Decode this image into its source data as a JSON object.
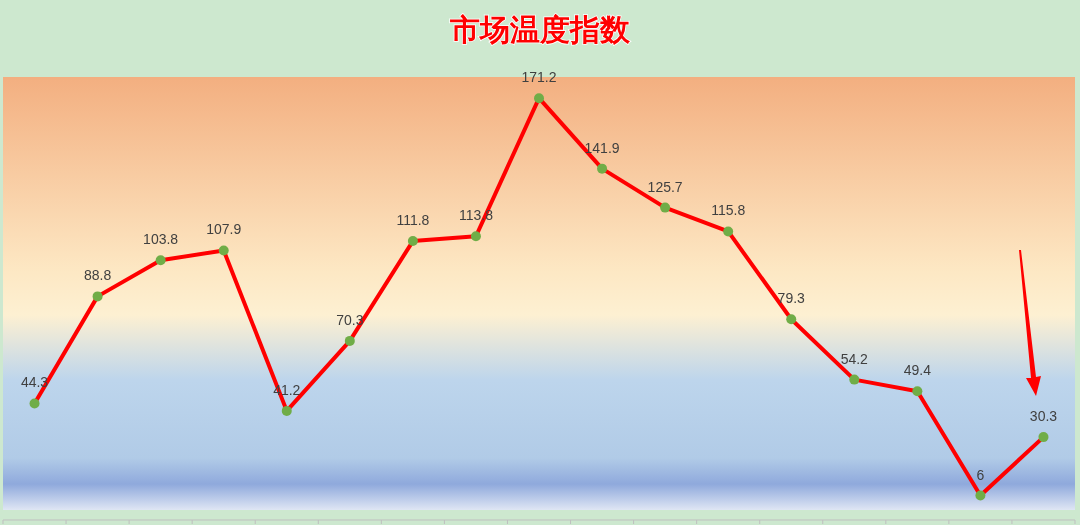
{
  "chart_data": {
    "type": "line",
    "title": "市场温度指数",
    "categories": [
      null,
      null,
      null,
      null,
      null,
      null,
      null,
      null,
      null,
      null,
      null,
      null,
      null,
      null,
      null,
      null,
      null
    ],
    "series": [
      {
        "color": "#ff0000",
        "values": [
          44.3,
          88.8,
          103.8,
          107.9,
          41.2,
          70.3,
          111.8,
          113.8,
          171.2,
          141.9,
          125.7,
          115.8,
          79.3,
          54.2,
          49.4,
          6,
          30.3
        ]
      }
    ],
    "marker": "circle",
    "line_style": "solid",
    "data_labels": true,
    "ylim": [
      0,
      180
    ]
  }
}
